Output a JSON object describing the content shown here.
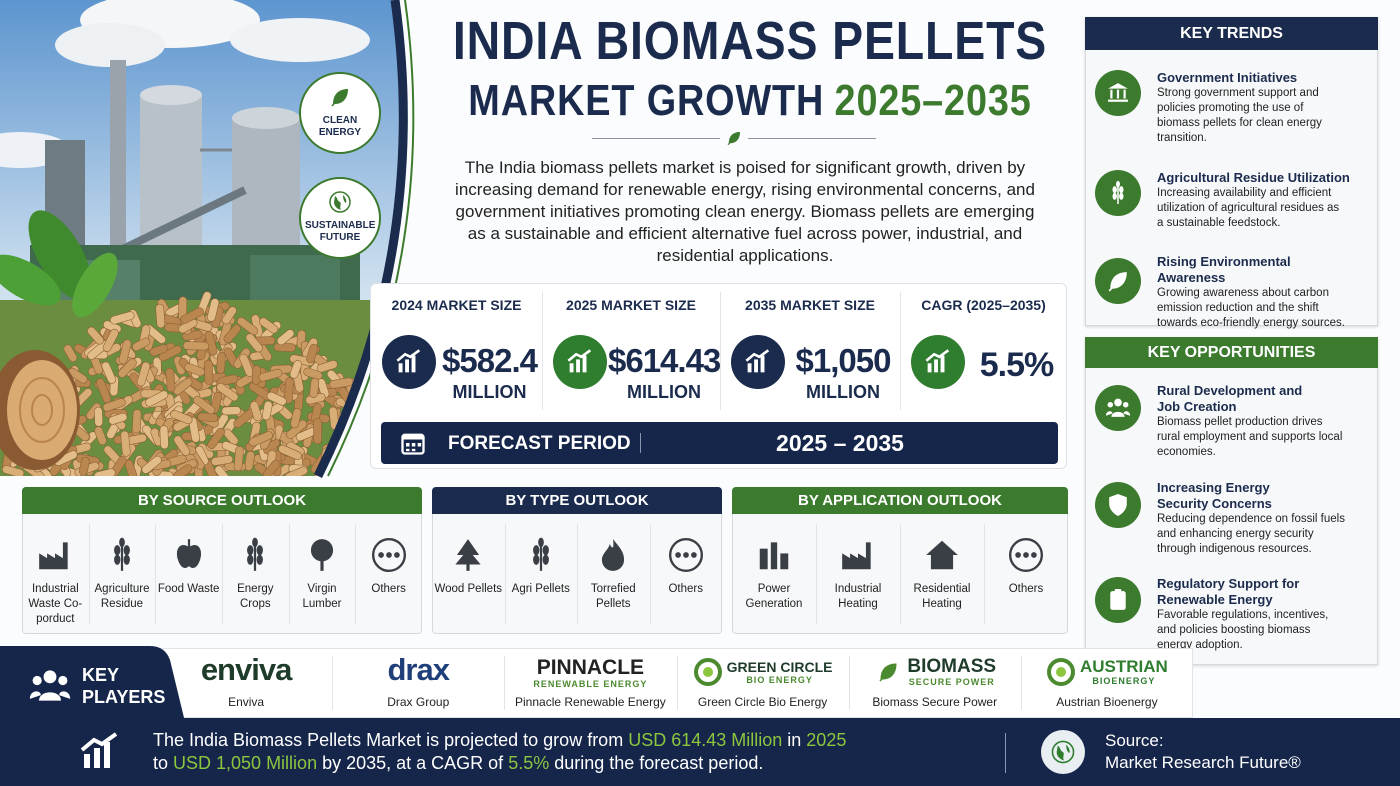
{
  "header": {
    "title_line1": "INDIA BIOMASS PELLETS",
    "title_line2": "MARKET GROWTH",
    "title_years": "2025–2035",
    "intro": "The India biomass pellets market is poised for significant growth, driven by increasing demand for renewable energy, rising environmental concerns, and government initiatives promoting clean energy. Biomass pellets are emerging as a sustainable and efficient alternative fuel across power, industrial, and residential applications."
  },
  "badges": [
    "CLEAN ENERGY",
    "SUSTAINABLE FUTURE"
  ],
  "stats": [
    {
      "label": "2024 MARKET SIZE",
      "value": "$582.4",
      "unit": "MILLION"
    },
    {
      "label": "2025 MARKET SIZE",
      "value": "$614.43",
      "unit": "MILLION"
    },
    {
      "label": "2035 MARKET SIZE",
      "value": "$1,050",
      "unit": "MILLION"
    },
    {
      "label": "CAGR (2025–2035)",
      "value": "5.5%"
    }
  ],
  "forecast": {
    "label": "FORECAST PERIOD",
    "value": "2025 – 2035"
  },
  "key_trends": {
    "title": "KEY TRENDS",
    "items": [
      {
        "title": "Government Initiatives",
        "text": "Strong government support and policies promoting the use of biomass pellets for clean energy transition."
      },
      {
        "title": "Agricultural Residue Utilization",
        "text": "Increasing availability and efficient utilization of agricultural residues as a sustainable feedstock."
      },
      {
        "title": "Rising Environmental Awareness",
        "text": "Growing awareness about carbon emission reduction and the shift towards eco-friendly energy sources."
      }
    ]
  },
  "key_opportunities": {
    "title": "KEY OPPORTUNITIES",
    "items": [
      {
        "title": "Rural Development and Job Creation",
        "text": "Biomass pellet production drives rural employment and supports local economies."
      },
      {
        "title": "Increasing Energy Security Concerns",
        "text": "Reducing dependence on fossil fuels and enhancing energy security through indigenous resources."
      },
      {
        "title": "Regulatory Support for Renewable Energy",
        "text": "Favorable regulations, incentives, and policies boosting biomass energy adoption."
      }
    ]
  },
  "outlooks": [
    {
      "title": "BY SOURCE OUTLOOK",
      "items": [
        "Industrial Waste Co-porduct",
        "Agriculture Residue",
        "Food Waste",
        "Energy Crops",
        "Virgin Lumber",
        "Others"
      ]
    },
    {
      "title": "BY TYPE OUTLOOK",
      "items": [
        "Wood Pellets",
        "Agri Pellets",
        "Torrefied Pellets",
        "Others"
      ]
    },
    {
      "title": "BY APPLICATION OUTLOOK",
      "items": [
        "Power Generation",
        "Industrial Heating",
        "Residential Heating",
        "Others"
      ]
    }
  ],
  "key_players": {
    "title": "KEY PLAYERS",
    "players": [
      {
        "logo": "enviva",
        "name": "Enviva"
      },
      {
        "logo": "drax",
        "name": "Drax Group"
      },
      {
        "logo": "PINNACLE",
        "logo_sub": "RENEWABLE ENERGY",
        "name": "Pinnacle Renewable Energy"
      },
      {
        "logo": "GREEN CIRCLE",
        "logo_sub": "BIO ENERGY",
        "name": "Green Circle Bio Energy"
      },
      {
        "logo": "BIOMASS",
        "logo_sub": "SECURE POWER",
        "name": "Biomass Secure Power"
      },
      {
        "logo": "AUSTRIAN",
        "logo_sub": "BIOENERGY",
        "name": "Austrian Bioenergy"
      }
    ]
  },
  "footer": {
    "lines": [
      [
        {
          "text": "The India Biomass Pellets Market is projected to grow from "
        },
        {
          "text": "USD 614.43 Million",
          "accent": true
        },
        {
          "text": " in "
        },
        {
          "text": "2025",
          "accent": true
        }
      ],
      [
        {
          "text": "to "
        },
        {
          "text": "USD 1,050 Million",
          "accent": true
        },
        {
          "text": " by 2035, at a CAGR of "
        },
        {
          "text": "5.5%",
          "accent": true
        },
        {
          "text": " during the forecast period."
        }
      ]
    ],
    "source_label": "Source:",
    "source": "Market Research Future®"
  }
}
